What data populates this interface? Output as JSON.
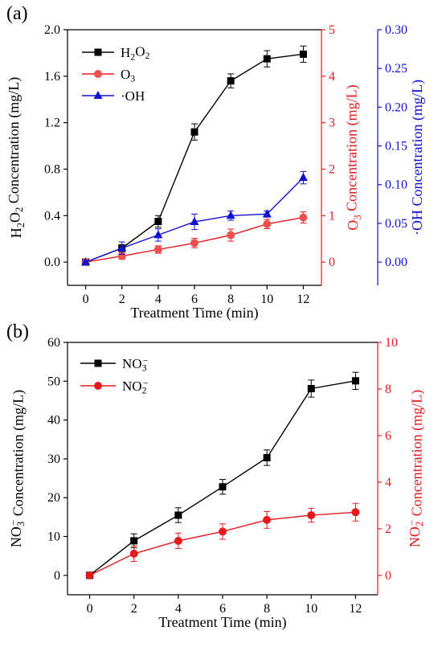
{
  "chart_data": [
    {
      "panel_label": "(a)",
      "type": "line",
      "x": [
        0,
        2,
        4,
        6,
        8,
        10,
        12
      ],
      "xlabel": "Treatment Time (min)",
      "xlim": [
        -1,
        13
      ],
      "xticks": [
        "0",
        "2",
        "4",
        "6",
        "8",
        "10",
        "12"
      ],
      "axes": {
        "left": {
          "label": "H2O2 Concentration (mg/L)",
          "label_parts": [
            "H",
            "2",
            "O",
            "2",
            " Concentration (mg/L)"
          ],
          "ylim": [
            -0.2,
            2.0
          ],
          "ticks": [
            "0.0",
            "0.4",
            "0.8",
            "1.2",
            "1.6",
            "2.0"
          ],
          "color": "#000000"
        },
        "right1": {
          "label": "O3 Concentration (mg/L)",
          "label_parts": [
            "O",
            "3",
            " Concentration (mg/L)"
          ],
          "ylim": [
            -0.5,
            5
          ],
          "ticks": [
            "0",
            "1",
            "2",
            "3",
            "4",
            "5"
          ],
          "color": "#e8191c"
        },
        "right2": {
          "label": "·OH Concentration (mg/L)",
          "ylim": [
            -0.03,
            0.3
          ],
          "ticks": [
            "0.00",
            "0.05",
            "0.10",
            "0.15",
            "0.20",
            "0.25",
            "0.30"
          ],
          "color": "#1010d0"
        }
      },
      "legend_position": "top-left",
      "series": [
        {
          "name": "H2O2",
          "name_parts": [
            "H",
            "2",
            "O",
            "2"
          ],
          "axis": "left",
          "marker": "square",
          "color": "#000000",
          "line_color": "#000000",
          "values": [
            0.0,
            0.12,
            0.35,
            1.12,
            1.56,
            1.75,
            1.79
          ],
          "errors": [
            0.02,
            0.03,
            0.05,
            0.07,
            0.06,
            0.07,
            0.07
          ]
        },
        {
          "name": "O3",
          "name_parts": [
            "O",
            "3"
          ],
          "axis": "right1",
          "marker": "circle",
          "color": "#f05050",
          "line_color": "#e8191c",
          "values": [
            0.0,
            0.13,
            0.27,
            0.41,
            0.58,
            0.82,
            0.96
          ],
          "errors": [
            0.03,
            0.07,
            0.08,
            0.1,
            0.13,
            0.1,
            0.12
          ]
        },
        {
          "name": "·OH",
          "name_parts": [
            "·OH"
          ],
          "axis": "right2",
          "marker": "triangle",
          "color": "#1010d0",
          "line_color": "#1010d0",
          "values": [
            0.0,
            0.018,
            0.035,
            0.052,
            0.06,
            0.062,
            0.109
          ],
          "errors": [
            0.002,
            0.008,
            0.008,
            0.01,
            0.006,
            0.004,
            0.008
          ]
        }
      ]
    },
    {
      "panel_label": "(b)",
      "type": "line",
      "x": [
        0,
        2,
        4,
        6,
        8,
        10,
        12
      ],
      "xlabel": "Treatment Time (min)",
      "xlim": [
        -1,
        13
      ],
      "xticks": [
        "0",
        "2",
        "4",
        "6",
        "8",
        "10",
        "12"
      ],
      "axes": {
        "left": {
          "label": "NO3− Concentration (mg/L)",
          "label_parts": [
            "NO",
            "3",
            "−",
            " Concentration (mg/L)"
          ],
          "ylim": [
            -5,
            60
          ],
          "ticks": [
            "0",
            "10",
            "20",
            "30",
            "40",
            "50",
            "60"
          ],
          "color": "#000000"
        },
        "right1": {
          "label": "NO2− Concentration (mg/L)",
          "label_parts": [
            "NO",
            "2",
            "−",
            " Concentration (mg/L)"
          ],
          "ylim": [
            -0.8333,
            10
          ],
          "ticks": [
            "0",
            "2",
            "4",
            "6",
            "8",
            "10"
          ],
          "color": "#e8191c"
        }
      },
      "legend_position": "top-left",
      "series": [
        {
          "name": "NO3−",
          "name_parts": [
            "NO",
            "3",
            "−"
          ],
          "axis": "left",
          "marker": "square",
          "color": "#000000",
          "line_color": "#000000",
          "values": [
            0.0,
            8.9,
            15.5,
            22.8,
            30.3,
            48.1,
            50.1
          ],
          "errors": [
            0.3,
            1.8,
            1.9,
            1.9,
            2.0,
            2.2,
            2.2
          ]
        },
        {
          "name": "NO2−",
          "name_parts": [
            "NO",
            "2",
            "−"
          ],
          "axis": "right1",
          "marker": "circle",
          "color": "#e8191c",
          "line_color": "#e8191c",
          "values": [
            0.0,
            0.93,
            1.48,
            1.88,
            2.38,
            2.58,
            2.71
          ],
          "errors": [
            0.05,
            0.33,
            0.33,
            0.33,
            0.36,
            0.3,
            0.38
          ]
        }
      ]
    }
  ]
}
